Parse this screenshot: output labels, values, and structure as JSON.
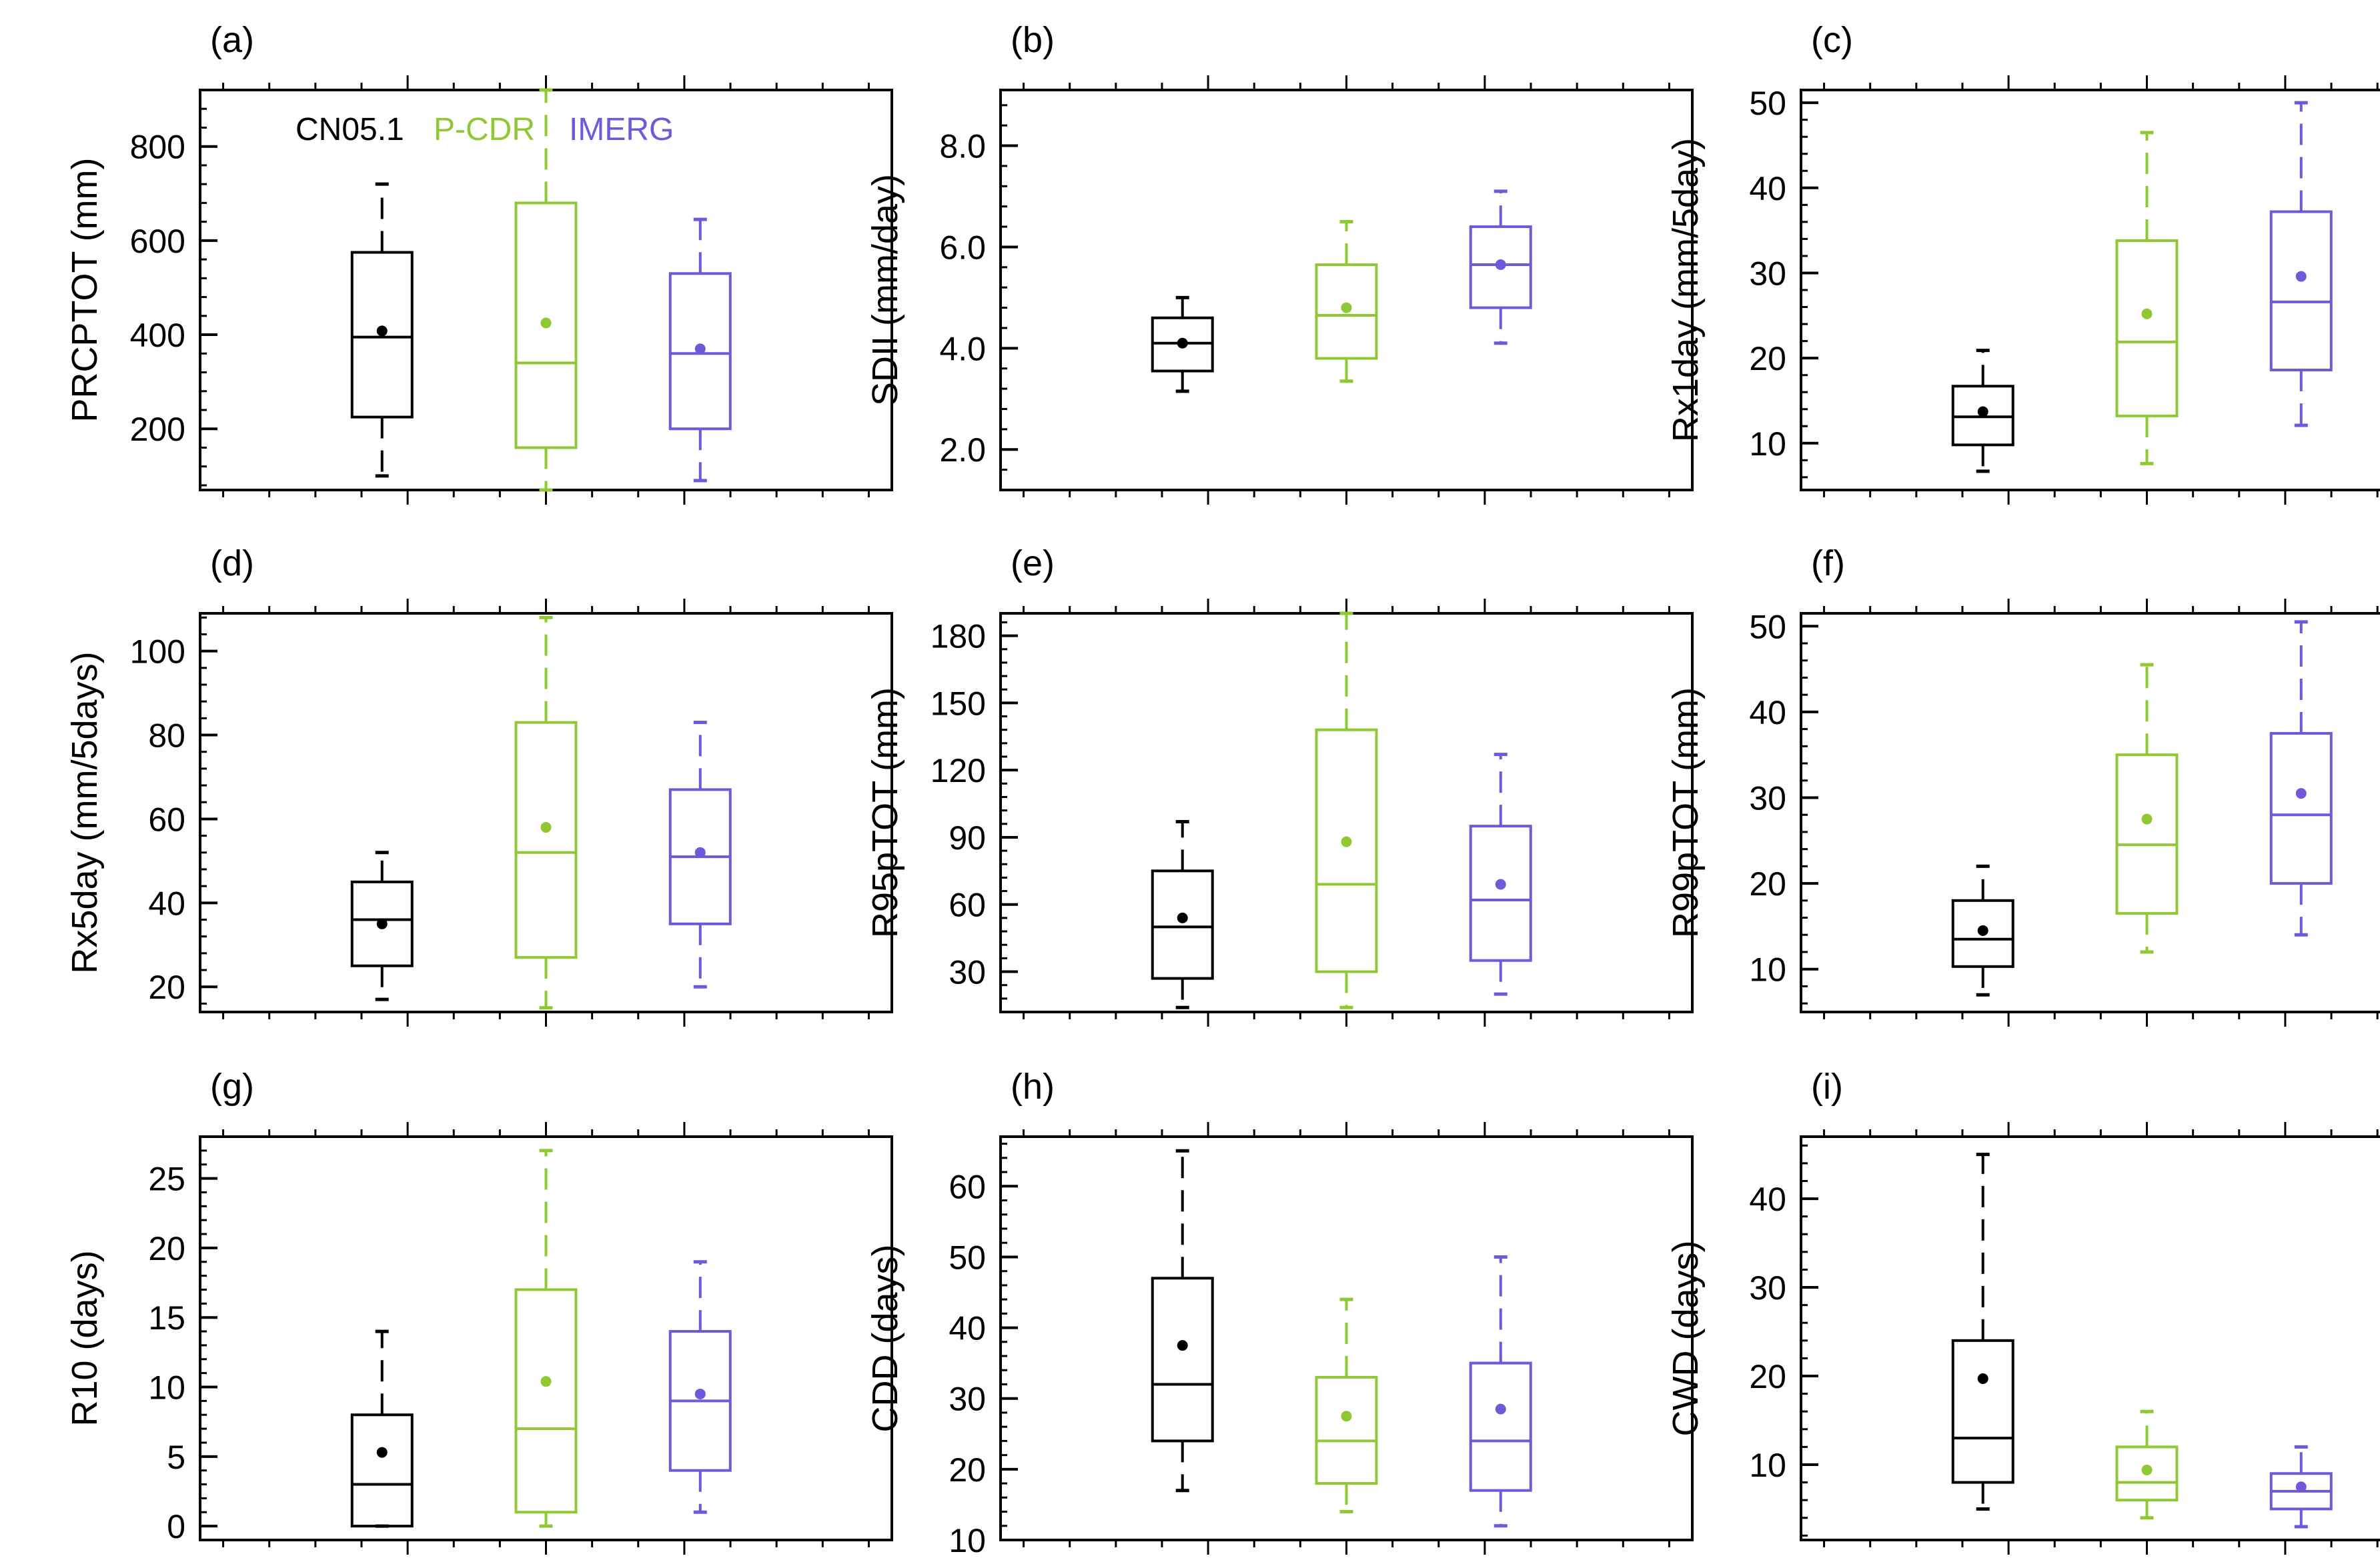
{
  "figure": {
    "colors": {
      "CN05.1": "#000000",
      "P-CDR": "#8fc832",
      "IMERG": "#7058d8"
    },
    "legend": [
      {
        "name": "CN05.1",
        "color": "#000000"
      },
      {
        "name": "P-CDR",
        "color": "#8fc832"
      },
      {
        "name": "IMERG",
        "color": "#7058d8"
      }
    ]
  },
  "chart_data": [
    {
      "type": "box",
      "label": "(a)",
      "ylabel": "PRCPTOT (mm)",
      "ylim": [
        70,
        920
      ],
      "yticks": [
        200,
        400,
        600,
        800
      ],
      "ytick_labels": [
        "200",
        "400",
        "600",
        "800"
      ],
      "boxes": [
        {
          "series": "CN05.1",
          "whisker_low": 100,
          "q1": 225,
          "median": 395,
          "q3": 575,
          "whisker_high": 720,
          "mean": 408
        },
        {
          "series": "P-CDR",
          "whisker_low": 70,
          "q1": 160,
          "median": 340,
          "q3": 680,
          "whisker_high": 920,
          "mean": 425
        },
        {
          "series": "IMERG",
          "whisker_low": 90,
          "q1": 200,
          "median": 360,
          "q3": 530,
          "whisker_high": 645,
          "mean": 370
        }
      ]
    },
    {
      "type": "box",
      "label": "(b)",
      "ylabel": "SDII (mm/day)",
      "ylim": [
        1.2,
        9.1
      ],
      "yticks": [
        2,
        4,
        6,
        8
      ],
      "ytick_labels": [
        "2.0",
        "4.0",
        "6.0",
        "8.0"
      ],
      "boxes": [
        {
          "series": "CN05.1",
          "whisker_low": 3.15,
          "q1": 3.55,
          "median": 4.1,
          "q3": 4.6,
          "whisker_high": 5.0,
          "mean": 4.1
        },
        {
          "series": "P-CDR",
          "whisker_low": 3.35,
          "q1": 3.8,
          "median": 4.65,
          "q3": 5.65,
          "whisker_high": 6.5,
          "mean": 4.8
        },
        {
          "series": "IMERG",
          "whisker_low": 4.1,
          "q1": 4.8,
          "median": 5.65,
          "q3": 6.4,
          "whisker_high": 7.1,
          "mean": 5.65
        }
      ]
    },
    {
      "type": "box",
      "label": "(c)",
      "ylabel": "Rx1day (mm/5day)",
      "ylim": [
        4.5,
        51.5
      ],
      "yticks": [
        10,
        20,
        30,
        40,
        50
      ],
      "ytick_labels": [
        "10",
        "20",
        "30",
        "40",
        "50"
      ],
      "boxes": [
        {
          "series": "CN05.1",
          "whisker_low": 6.7,
          "q1": 9.8,
          "median": 13.1,
          "q3": 16.7,
          "whisker_high": 20.9,
          "mean": 13.7
        },
        {
          "series": "P-CDR",
          "whisker_low": 7.6,
          "q1": 13.2,
          "median": 21.9,
          "q3": 33.8,
          "whisker_high": 46.5,
          "mean": 25.2
        },
        {
          "series": "IMERG",
          "whisker_low": 12.1,
          "q1": 18.6,
          "median": 26.6,
          "q3": 37.2,
          "whisker_high": 50.0,
          "mean": 29.6
        }
      ]
    },
    {
      "type": "box",
      "label": "(d)",
      "ylabel": "Rx5day (mm/5days)",
      "ylim": [
        14,
        109
      ],
      "yticks": [
        20,
        40,
        60,
        80,
        100
      ],
      "ytick_labels": [
        "20",
        "40",
        "60",
        "80",
        "100"
      ],
      "boxes": [
        {
          "series": "CN05.1",
          "whisker_low": 17,
          "q1": 25,
          "median": 36,
          "q3": 45,
          "whisker_high": 52,
          "mean": 35
        },
        {
          "series": "P-CDR",
          "whisker_low": 15,
          "q1": 27,
          "median": 52,
          "q3": 83,
          "whisker_high": 108,
          "mean": 58
        },
        {
          "series": "IMERG",
          "whisker_low": 20,
          "q1": 35,
          "median": 51,
          "q3": 67,
          "whisker_high": 83,
          "mean": 52
        }
      ]
    },
    {
      "type": "box",
      "label": "(e)",
      "ylabel": "R95pTOT (mm)",
      "ylim": [
        12,
        190
      ],
      "yticks": [
        30,
        60,
        90,
        120,
        150,
        180
      ],
      "ytick_labels": [
        "30",
        "60",
        "90",
        "120",
        "150",
        "180"
      ],
      "boxes": [
        {
          "series": "CN05.1",
          "whisker_low": 14,
          "q1": 27,
          "median": 50,
          "q3": 75,
          "whisker_high": 97,
          "mean": 54
        },
        {
          "series": "P-CDR",
          "whisker_low": 14,
          "q1": 30,
          "median": 69,
          "q3": 138,
          "whisker_high": 190,
          "mean": 88
        },
        {
          "series": "IMERG",
          "whisker_low": 20,
          "q1": 35,
          "median": 62,
          "q3": 95,
          "whisker_high": 127,
          "mean": 69
        }
      ]
    },
    {
      "type": "box",
      "label": "(f)",
      "ylabel": "R99pTOT (mm)",
      "ylim": [
        5,
        51.5
      ],
      "yticks": [
        10,
        20,
        30,
        40,
        50
      ],
      "ytick_labels": [
        "10",
        "20",
        "30",
        "40",
        "50"
      ],
      "boxes": [
        {
          "series": "CN05.1",
          "whisker_low": 7,
          "q1": 10.3,
          "median": 13.5,
          "q3": 18,
          "whisker_high": 22,
          "mean": 14.5
        },
        {
          "series": "P-CDR",
          "whisker_low": 12,
          "q1": 16.5,
          "median": 24.5,
          "q3": 35,
          "whisker_high": 45.5,
          "mean": 27.5
        },
        {
          "series": "IMERG",
          "whisker_low": 14,
          "q1": 20,
          "median": 28,
          "q3": 37.5,
          "whisker_high": 50.5,
          "mean": 30.5
        }
      ]
    },
    {
      "type": "box",
      "label": "(g)",
      "ylabel": "R10 (days)",
      "ylim": [
        -1,
        28
      ],
      "yticks": [
        0,
        5,
        10,
        15,
        20,
        25
      ],
      "ytick_labels": [
        "0",
        "5",
        "10",
        "15",
        "20",
        "25"
      ],
      "boxes": [
        {
          "series": "CN05.1",
          "whisker_low": 0,
          "q1": 0,
          "median": 3,
          "q3": 8,
          "whisker_high": 14,
          "mean": 5.3
        },
        {
          "series": "P-CDR",
          "whisker_low": 0,
          "q1": 1,
          "median": 7,
          "q3": 17,
          "whisker_high": 27,
          "mean": 10.4
        },
        {
          "series": "IMERG",
          "whisker_low": 1,
          "q1": 4,
          "median": 9,
          "q3": 14,
          "whisker_high": 19,
          "mean": 9.5
        }
      ]
    },
    {
      "type": "box",
      "label": "(h)",
      "ylabel": "CDD (days)",
      "ylim": [
        10,
        67
      ],
      "yticks": [
        10,
        20,
        30,
        40,
        50,
        60
      ],
      "ytick_labels": [
        "10",
        "20",
        "30",
        "40",
        "50",
        "60"
      ],
      "boxes": [
        {
          "series": "CN05.1",
          "whisker_low": 17,
          "q1": 24,
          "median": 32,
          "q3": 47,
          "whisker_high": 65,
          "mean": 37.5
        },
        {
          "series": "P-CDR",
          "whisker_low": 14,
          "q1": 18,
          "median": 24,
          "q3": 33,
          "whisker_high": 44,
          "mean": 27.5
        },
        {
          "series": "IMERG",
          "whisker_low": 12,
          "q1": 17,
          "median": 24,
          "q3": 35,
          "whisker_high": 50,
          "mean": 28.5
        }
      ]
    },
    {
      "type": "box",
      "label": "(i)",
      "ylabel": "CWD (days)",
      "ylim": [
        1.5,
        47
      ],
      "yticks": [
        10,
        20,
        30,
        40
      ],
      "ytick_labels": [
        "10",
        "20",
        "30",
        "40"
      ],
      "boxes": [
        {
          "series": "CN05.1",
          "whisker_low": 5,
          "q1": 8,
          "median": 13,
          "q3": 24,
          "whisker_high": 45,
          "mean": 19.7
        },
        {
          "series": "P-CDR",
          "whisker_low": 4,
          "q1": 6,
          "median": 8,
          "q3": 12,
          "whisker_high": 16,
          "mean": 9.4
        },
        {
          "series": "IMERG",
          "whisker_low": 3,
          "q1": 5,
          "median": 7,
          "q3": 9,
          "whisker_high": 12,
          "mean": 7.5
        }
      ]
    }
  ]
}
